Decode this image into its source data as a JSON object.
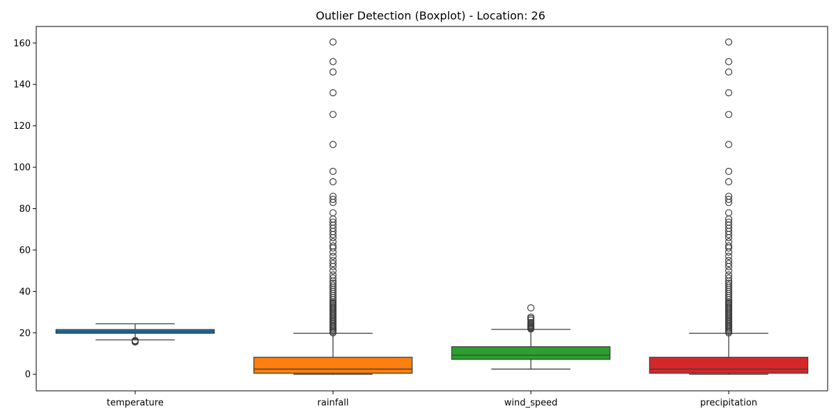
{
  "chart_data": {
    "type": "boxplot",
    "title": "Outlier Detection (Boxplot) - Location: 26",
    "xlabel": "",
    "ylabel": "",
    "ylim": [
      -8,
      168
    ],
    "yticks": [
      0,
      20,
      40,
      60,
      80,
      100,
      120,
      140,
      160
    ],
    "grid": false,
    "legend": "none",
    "series": [
      {
        "name": "temperature",
        "color": "#1f77b4",
        "whisker_low": 16.6,
        "q1": 19.8,
        "median": 20.6,
        "q3": 21.6,
        "whisker_high": 24.4,
        "outliers": [
          15.6,
          15.9,
          16.1,
          16.3
        ]
      },
      {
        "name": "rainfall",
        "color": "#ff7f0e",
        "whisker_low": 0.0,
        "q1": 0.5,
        "median": 2.5,
        "q3": 8.2,
        "whisker_high": 19.8,
        "outliers": [
          20.0,
          20.6,
          21.2,
          21.8,
          22.4,
          23.0,
          23.6,
          24.2,
          24.8,
          25.4,
          26.0,
          26.6,
          27.2,
          27.8,
          28.4,
          29.0,
          29.6,
          30.2,
          30.8,
          31.4,
          32.0,
          32.6,
          33.2,
          33.8,
          34.4,
          35.0,
          36.0,
          37.0,
          38.0,
          39.0,
          40.0,
          41.0,
          42.0,
          43.0,
          44.0,
          45.0,
          46.5,
          48.0,
          50.0,
          52.0,
          53.5,
          55.0,
          57.0,
          59.0,
          61.0,
          62.0,
          64.0,
          66.0,
          67.5,
          69.0,
          70.5,
          72.0,
          73.5,
          75.0,
          78.0,
          83.0,
          84.5,
          86.0,
          93.0,
          98.0,
          111.0,
          125.5,
          136.0,
          146.0,
          151.0,
          160.5
        ]
      },
      {
        "name": "wind_speed",
        "color": "#2ca02c",
        "whisker_low": 2.5,
        "q1": 7.2,
        "median": 9.2,
        "q3": 13.3,
        "whisker_high": 21.7,
        "outliers": [
          21.9,
          22.3,
          22.7,
          23.1,
          23.5,
          24.0,
          24.5,
          25.0,
          26.2,
          27.0,
          27.6,
          32.1
        ]
      },
      {
        "name": "precipitation",
        "color": "#d62728",
        "whisker_low": 0.0,
        "q1": 0.5,
        "median": 2.5,
        "q3": 8.2,
        "whisker_high": 19.8,
        "outliers": [
          20.0,
          20.6,
          21.2,
          21.8,
          22.4,
          23.0,
          23.6,
          24.2,
          24.8,
          25.4,
          26.0,
          26.6,
          27.2,
          27.8,
          28.4,
          29.0,
          29.6,
          30.2,
          30.8,
          31.4,
          32.0,
          32.6,
          33.2,
          33.8,
          34.4,
          35.0,
          36.0,
          37.0,
          38.0,
          39.0,
          40.0,
          41.0,
          42.0,
          43.0,
          44.0,
          45.0,
          46.5,
          48.0,
          50.0,
          52.0,
          53.5,
          55.0,
          57.0,
          59.0,
          61.0,
          62.0,
          64.0,
          66.0,
          67.5,
          69.0,
          70.5,
          72.0,
          73.5,
          75.0,
          78.0,
          83.0,
          84.5,
          86.0,
          93.0,
          98.0,
          111.0,
          125.5,
          136.0,
          146.0,
          151.0,
          160.5
        ]
      }
    ]
  }
}
